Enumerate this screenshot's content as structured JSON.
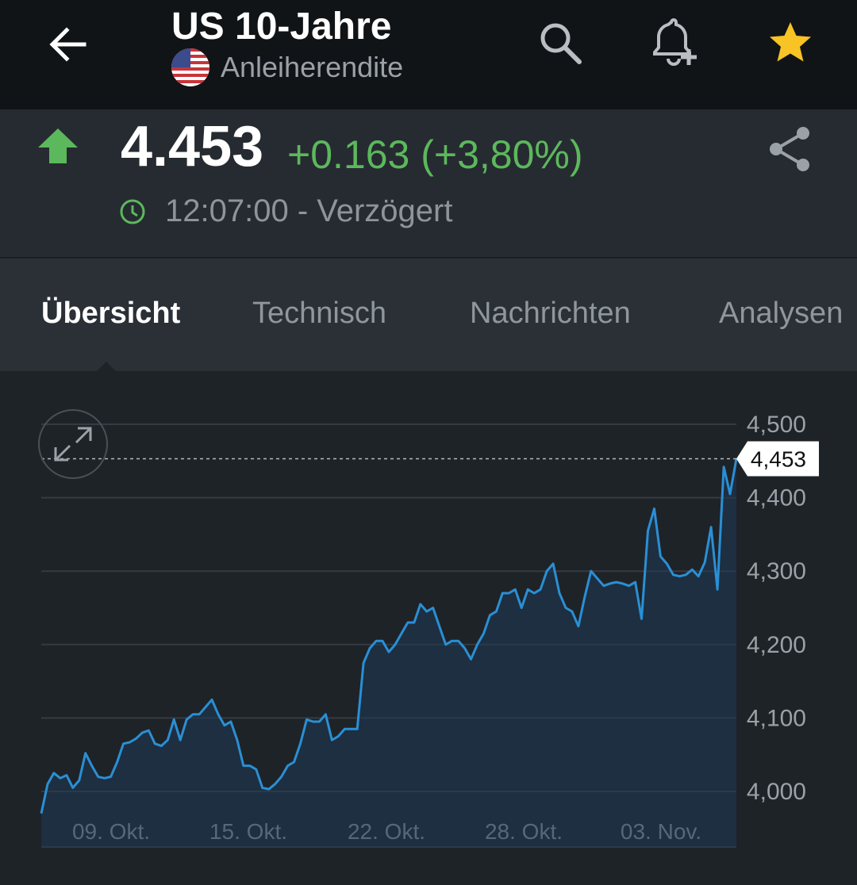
{
  "header": {
    "title": "US 10-Jahre",
    "subtitle": "Anleiherendite",
    "icons": [
      "back-arrow-icon",
      "us-flag-icon",
      "search-icon",
      "alert-add-icon",
      "star-icon"
    ],
    "star_color": "#f7c325"
  },
  "quote": {
    "price": "4.453",
    "change": "+0.163 (+3,80%)",
    "time": "12:07:00 - Verzögert",
    "colors": {
      "up": "#5cb85c",
      "muted": "#8d949b"
    },
    "icons": [
      "up-arrow-icon",
      "share-icon",
      "clock-icon"
    ]
  },
  "tabs": [
    {
      "label": "Übersicht",
      "active": true
    },
    {
      "label": "Technisch",
      "active": false
    },
    {
      "label": "Nachrichten",
      "active": false
    },
    {
      "label": "Analysen",
      "active": false
    }
  ],
  "chart_data": {
    "type": "area",
    "x_tick_labels": [
      "09. Okt.",
      "15. Okt.",
      "22. Okt.",
      "28. Okt.",
      "03. Nov."
    ],
    "y_tick_labels": [
      "4,500",
      "4,400",
      "4,300",
      "4,200",
      "4,100",
      "4,000"
    ],
    "ylim": [
      3.96,
      4.53
    ],
    "last_value_label": "4,453",
    "last_value": 4.453,
    "grid": true,
    "line_color": "#2a8fd4",
    "values": [
      3.97,
      4.01,
      4.025,
      4.018,
      4.022,
      4.005,
      4.015,
      4.052,
      4.035,
      4.02,
      4.018,
      4.02,
      4.04,
      4.065,
      4.067,
      4.072,
      4.08,
      4.083,
      4.065,
      4.062,
      4.07,
      4.098,
      4.07,
      4.098,
      4.105,
      4.105,
      4.115,
      4.125,
      4.105,
      4.09,
      4.095,
      4.07,
      4.035,
      4.035,
      4.03,
      4.005,
      4.003,
      4.01,
      4.02,
      4.035,
      4.04,
      4.065,
      4.098,
      4.095,
      4.095,
      4.105,
      4.07,
      4.075,
      4.085,
      4.085,
      4.085,
      4.175,
      4.195,
      4.205,
      4.205,
      4.19,
      4.2,
      4.215,
      4.23,
      4.23,
      4.255,
      4.245,
      4.25,
      4.225,
      4.2,
      4.205,
      4.205,
      4.195,
      4.18,
      4.2,
      4.215,
      4.24,
      4.245,
      4.27,
      4.27,
      4.275,
      4.25,
      4.275,
      4.27,
      4.275,
      4.3,
      4.31,
      4.27,
      4.25,
      4.245,
      4.225,
      4.265,
      4.3,
      4.29,
      4.28,
      4.283,
      4.285,
      4.283,
      4.28,
      4.285,
      4.235,
      4.355,
      4.385,
      4.32,
      4.31,
      4.295,
      4.293,
      4.295,
      4.302,
      4.293,
      4.312,
      4.36,
      4.275,
      4.442,
      4.405,
      4.453
    ]
  }
}
